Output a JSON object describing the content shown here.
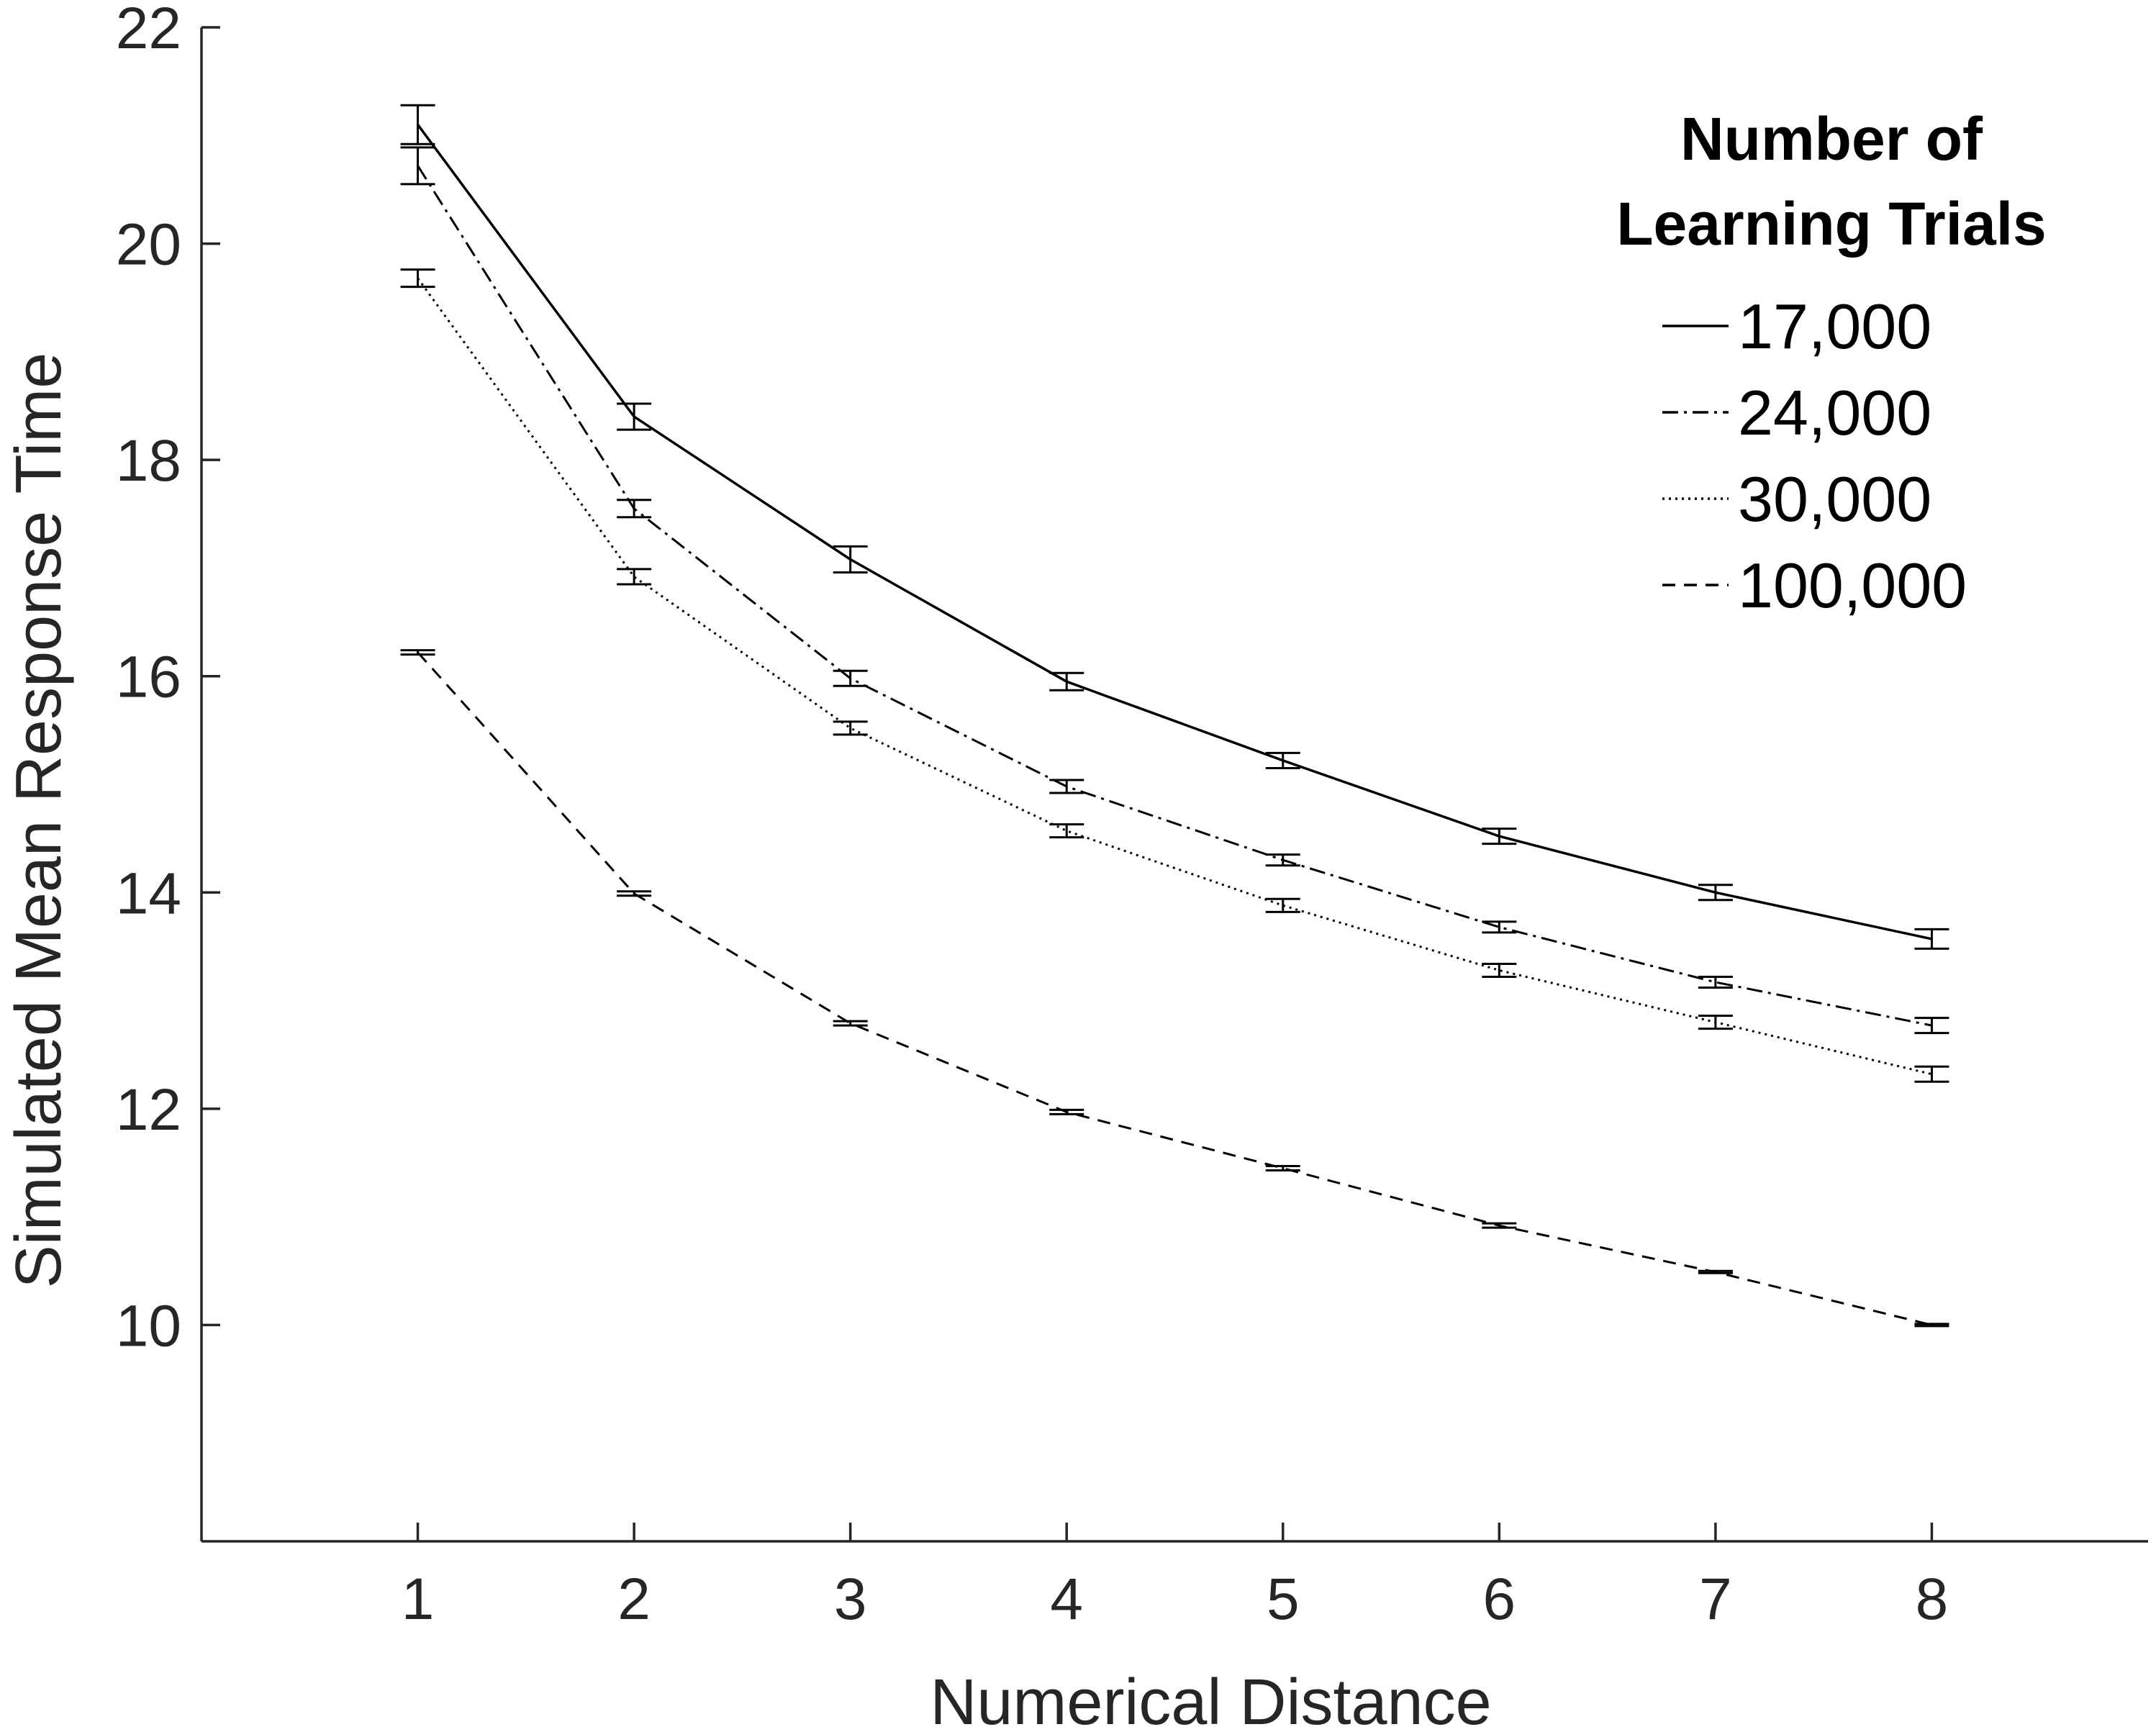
{
  "chart_data": {
    "type": "line",
    "title": "",
    "xlabel": "Numerical Distance",
    "ylabel": "Simulated Mean Response Time",
    "x": [
      1,
      2,
      3,
      4,
      5,
      6,
      7,
      8
    ],
    "xlim": [
      0,
      9
    ],
    "ylim": [
      8,
      22
    ],
    "xticks": [
      "1",
      "2",
      "3",
      "4",
      "5",
      "6",
      "7",
      "8"
    ],
    "yticks": [
      "10",
      "12",
      "14",
      "16",
      "18",
      "20",
      "22"
    ],
    "grid": false,
    "legend_title": [
      "Number of",
      "Learning Trials"
    ],
    "legend_position": "top-right",
    "series": [
      {
        "name": "17,000",
        "style": "solid",
        "values": [
          21.1,
          18.4,
          17.08,
          15.95,
          15.22,
          14.52,
          14.0,
          13.57
        ],
        "errors": [
          0.18,
          0.12,
          0.12,
          0.08,
          0.07,
          0.07,
          0.07,
          0.09
        ]
      },
      {
        "name": "24,000",
        "style": "dashdot",
        "values": [
          20.72,
          17.55,
          15.98,
          14.98,
          14.3,
          13.68,
          13.17,
          12.77
        ],
        "errors": [
          0.17,
          0.08,
          0.07,
          0.06,
          0.05,
          0.05,
          0.05,
          0.07
        ]
      },
      {
        "name": "30,000",
        "style": "dotted",
        "values": [
          19.68,
          16.92,
          15.52,
          14.57,
          13.88,
          13.28,
          12.8,
          12.32
        ],
        "errors": [
          0.08,
          0.07,
          0.06,
          0.06,
          0.06,
          0.06,
          0.06,
          0.07
        ]
      },
      {
        "name": "100,000",
        "style": "dashed",
        "values": [
          16.22,
          13.99,
          12.79,
          11.97,
          11.45,
          10.92,
          10.49,
          10.0
        ],
        "errors": [
          0.02,
          0.02,
          0.02,
          0.02,
          0.02,
          0.02,
          0.01,
          0.01
        ]
      }
    ],
    "colors": {
      "axis": "#262626",
      "line": "#000000"
    }
  }
}
